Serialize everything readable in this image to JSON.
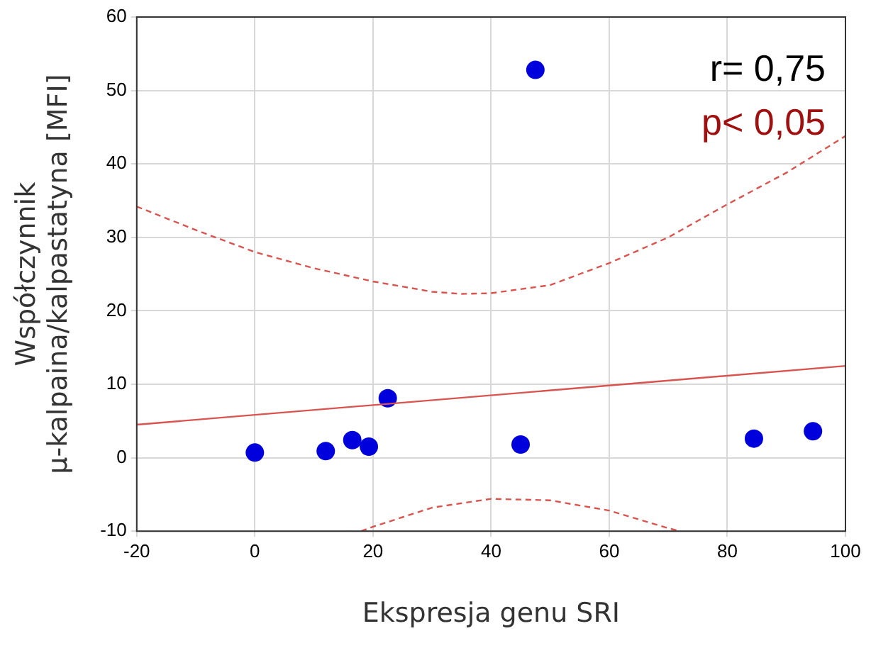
{
  "chart_data": {
    "type": "scatter",
    "xlabel": "Ekspresja genu SRI",
    "ylabel": "Współczynnik\nµ-kalpaina/kalpastatyna [MFI]",
    "xlim": [
      -20,
      100
    ],
    "xticks": [
      -20,
      0,
      20,
      40,
      60,
      80,
      100
    ],
    "ylim": [
      -10,
      60
    ],
    "yticks": [
      -10,
      0,
      10,
      20,
      30,
      40,
      50,
      60
    ],
    "grid": true,
    "legend": false,
    "marker": "circle",
    "series": [
      {
        "type": "line",
        "color": "#d9534f",
        "line_style": "solid",
        "marker": "none",
        "x": [
          -20,
          100
        ],
        "values": [
          4.5,
          12.5
        ]
      },
      {
        "type": "line",
        "color": "#d9534f",
        "line_style": "dashed",
        "marker": "none",
        "x": [
          -20,
          -10,
          0,
          10,
          20,
          30,
          35,
          40,
          50,
          60,
          70,
          80,
          90,
          100
        ],
        "values": [
          34.2,
          31,
          28,
          25.8,
          24,
          22.6,
          22.3,
          22.4,
          23.5,
          26.5,
          30,
          34.5,
          38.8,
          43.8
        ]
      },
      {
        "type": "line",
        "color": "#d9534f",
        "line_style": "dashed",
        "marker": "none",
        "x": [
          18,
          20,
          30,
          40,
          50,
          60,
          70,
          72
        ],
        "values": [
          -10,
          -9.4,
          -6.8,
          -5.6,
          -5.8,
          -7.2,
          -9.6,
          -10
        ]
      },
      {
        "color": "#0000dd",
        "x": [
          0,
          12,
          16.5,
          19.3,
          22.5,
          45,
          47.5,
          84.5,
          94.5
        ],
        "values": [
          0.7,
          0.9,
          2.4,
          1.5,
          8.1,
          1.8,
          52.8,
          2.6,
          3.6
        ]
      }
    ],
    "annotations": [
      "r= 0,75",
      "p< 0,05"
    ]
  }
}
